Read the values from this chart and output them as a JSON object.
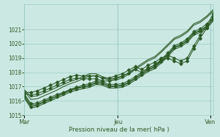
{
  "xlabel": "Pression niveau de la mer( hPa )",
  "bg_color": "#cce8e2",
  "grid_color": "#99ccc5",
  "line_color": "#2d5a27",
  "tick_color": "#2d5a27",
  "label_color": "#2d5a27",
  "ylim": [
    1015.0,
    1022.8
  ],
  "yticks": [
    1015,
    1016,
    1017,
    1018,
    1019,
    1020,
    1021
  ],
  "xtick_labels": [
    "Mar",
    "Jeu",
    "Ven"
  ],
  "xtick_positions": [
    0.0,
    0.495,
    0.985
  ],
  "series": [
    [
      1016.5,
      1015.8,
      1015.85,
      1016.05,
      1016.25,
      1016.45,
      1016.6,
      1016.8,
      1016.95,
      1017.1,
      1017.2,
      1017.4,
      1017.35,
      1017.15,
      1017.15,
      1017.2,
      1017.4,
      1017.7,
      1018.0,
      1018.3,
      1018.5,
      1018.9,
      1019.35,
      1019.85,
      1020.05,
      1020.35,
      1020.85,
      1021.05,
      1021.4,
      1021.85
    ],
    [
      1016.3,
      1015.6,
      1015.7,
      1015.9,
      1016.1,
      1016.3,
      1016.5,
      1016.7,
      1016.85,
      1016.95,
      1017.05,
      1017.25,
      1017.2,
      1017.0,
      1017.0,
      1017.05,
      1017.25,
      1017.55,
      1017.85,
      1018.15,
      1018.35,
      1018.75,
      1019.2,
      1019.7,
      1019.9,
      1020.2,
      1020.7,
      1020.9,
      1021.2,
      1021.7
    ],
    [
      1016.4,
      1015.7,
      1015.75,
      1015.95,
      1016.15,
      1016.35,
      1016.55,
      1016.75,
      1016.9,
      1017.0,
      1017.1,
      1017.3,
      1017.25,
      1017.05,
      1017.05,
      1017.1,
      1017.3,
      1017.6,
      1017.9,
      1018.2,
      1018.4,
      1018.8,
      1019.25,
      1019.75,
      1019.95,
      1020.25,
      1020.75,
      1020.95,
      1021.25,
      1021.75
    ],
    [
      1016.2,
      1015.5,
      1015.6,
      1015.8,
      1016.0,
      1016.2,
      1016.4,
      1016.6,
      1016.75,
      1016.85,
      1016.95,
      1017.15,
      1017.1,
      1016.9,
      1016.9,
      1016.95,
      1017.15,
      1017.45,
      1017.75,
      1018.05,
      1018.25,
      1018.65,
      1019.1,
      1019.6,
      1019.8,
      1020.1,
      1020.6,
      1020.8,
      1021.1,
      1021.6
    ],
    [
      1016.7,
      1016.1,
      1016.15,
      1016.35,
      1016.55,
      1016.75,
      1017.0,
      1017.2,
      1017.35,
      1017.55,
      1017.75,
      1017.75,
      1017.6,
      1017.45,
      1017.45,
      1017.6,
      1017.85,
      1018.2,
      1018.5,
      1018.8,
      1019.0,
      1019.4,
      1019.85,
      1020.3,
      1020.5,
      1020.8,
      1021.3,
      1021.5,
      1021.85,
      1022.3
    ],
    [
      1016.8,
      1016.3,
      1016.35,
      1016.55,
      1016.75,
      1016.95,
      1017.15,
      1017.35,
      1017.5,
      1017.7,
      1017.9,
      1017.9,
      1017.7,
      1017.55,
      1017.6,
      1017.75,
      1017.95,
      1018.3,
      1018.6,
      1018.9,
      1019.1,
      1019.5,
      1019.95,
      1020.4,
      1020.6,
      1020.9,
      1021.4,
      1021.6,
      1021.95,
      1022.4
    ],
    [
      1016.6,
      1016.6,
      1016.7,
      1016.9,
      1017.1,
      1017.3,
      1017.5,
      1017.7,
      1017.8,
      1017.75,
      1017.75,
      1017.75,
      1017.6,
      1017.6,
      1017.75,
      1017.9,
      1018.15,
      1018.4,
      1018.2,
      1018.5,
      1018.7,
      1019.0,
      1019.2,
      1019.0,
      1018.8,
      1019.0,
      1019.85,
      1020.6,
      1021.3,
      1022.1
    ],
    [
      1016.5,
      1016.4,
      1016.5,
      1016.7,
      1016.9,
      1017.1,
      1017.3,
      1017.5,
      1017.6,
      1017.55,
      1017.55,
      1017.55,
      1017.4,
      1017.4,
      1017.55,
      1017.7,
      1017.95,
      1018.2,
      1018.0,
      1018.3,
      1018.5,
      1018.8,
      1019.0,
      1018.8,
      1018.6,
      1018.8,
      1019.65,
      1020.4,
      1021.1,
      1021.9
    ]
  ],
  "markers": [
    {
      "marker": "D",
      "ms": 2.5,
      "lw": 0.8
    },
    {
      "marker": "D",
      "ms": 2.5,
      "lw": 0.8
    },
    {
      "marker": null,
      "ms": 0,
      "lw": 0.8
    },
    {
      "marker": null,
      "ms": 0,
      "lw": 0.8
    },
    {
      "marker": null,
      "ms": 0,
      "lw": 0.8
    },
    {
      "marker": null,
      "ms": 0,
      "lw": 0.8
    },
    {
      "marker": "D",
      "ms": 2.5,
      "lw": 0.8
    },
    {
      "marker": "D",
      "ms": 2.5,
      "lw": 0.8
    }
  ],
  "vline_x": [
    0.0,
    0.495,
    0.985
  ]
}
